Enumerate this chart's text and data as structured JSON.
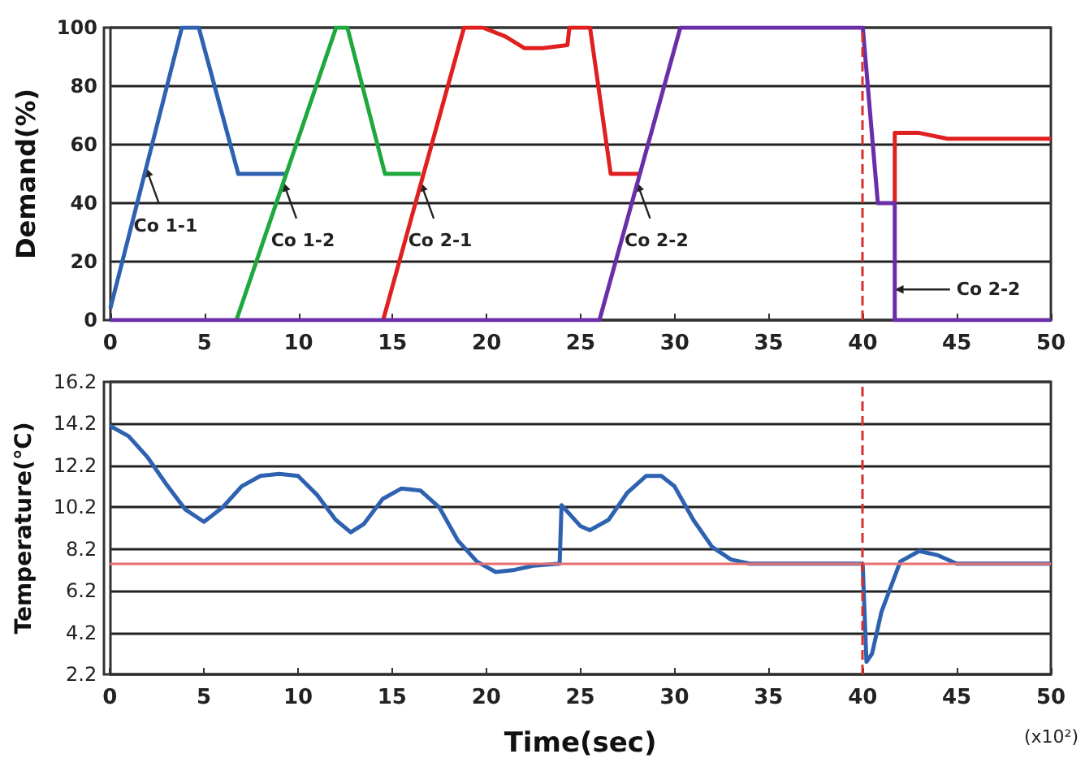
{
  "chart_data": [
    {
      "type": "line",
      "ylabel": "Demand(%)",
      "xlim": [
        0,
        50
      ],
      "xticks": [
        0,
        5,
        10,
        15,
        20,
        25,
        30,
        35,
        40,
        45,
        50
      ],
      "ylim": [
        0,
        100
      ],
      "yticks": [
        0,
        20,
        40,
        60,
        80,
        100
      ],
      "grid": "y",
      "marker": "none",
      "series": [
        {
          "color": "#2e62b0",
          "x": [
            0,
            3.8,
            4.7,
            6.8,
            9.4
          ],
          "values": [
            4,
            100,
            100,
            50,
            50
          ]
        },
        {
          "color": "#1fa83c",
          "x": [
            6.7,
            12,
            12.6,
            14.6,
            16.5
          ],
          "values": [
            0,
            100,
            100,
            50,
            50
          ]
        },
        {
          "color": "#e02020",
          "x": [
            14.5,
            18.8,
            19.8,
            21,
            22,
            23,
            24.3,
            24.4,
            25.5,
            26.6,
            28.2,
            30,
            41.7,
            41.7,
            43,
            44.5,
            50
          ],
          "values": [
            0,
            100,
            100,
            97,
            93,
            93,
            94,
            100,
            100,
            50,
            50,
            null,
            40,
            64,
            64,
            62,
            62
          ]
        },
        {
          "color": "#6a2fa8",
          "x": [
            0,
            26,
            30.3,
            40,
            40.8,
            41.7,
            41.7,
            50
          ],
          "values": [
            0,
            0,
            100,
            100,
            40,
            40,
            0,
            0
          ]
        }
      ],
      "ref_lines": [
        {
          "axis": "x",
          "value": 40,
          "color": "#d83030",
          "line_style": "dashed"
        }
      ],
      "annotations": [
        {
          "text": "Co 1-1",
          "x": 1.9,
          "y": 52
        },
        {
          "text": "Co 1-2",
          "x": 9.2,
          "y": 47
        },
        {
          "text": "Co 2-1",
          "x": 16.5,
          "y": 47
        },
        {
          "text": "Co 2-2",
          "x": 28,
          "y": 47
        },
        {
          "text": "Co 2-2",
          "x": 41.7,
          "y": 10.5
        }
      ]
    },
    {
      "type": "line",
      "xlabel": "Time(sec)",
      "ylabel": "Temperature(℃)",
      "xlim": [
        0,
        50
      ],
      "xticks": [
        0,
        5,
        10,
        15,
        20,
        25,
        30,
        35,
        40,
        45,
        50
      ],
      "ylim": [
        2.2,
        16.2
      ],
      "yticks": [
        2.2,
        4.2,
        6.2,
        8.2,
        10.2,
        12.2,
        14.2,
        16.2
      ],
      "grid": "y",
      "marker": "none",
      "series": [
        {
          "color": "#2e62b0",
          "x": [
            0,
            1,
            2,
            3,
            4,
            5,
            6,
            7,
            8,
            9,
            10,
            11,
            12,
            12.8,
            13.5,
            14.5,
            15.5,
            16.5,
            17.5,
            18.5,
            19.5,
            20.5,
            21.5,
            22.5,
            23.9,
            24,
            25,
            25.5,
            26.5,
            27.5,
            28.5,
            29.3,
            30,
            31,
            32,
            33,
            34,
            35,
            40,
            40.2,
            40.5,
            41,
            42,
            43,
            44,
            45,
            50
          ],
          "values": [
            14.1,
            13.6,
            12.6,
            11.3,
            10.1,
            9.5,
            10.2,
            11.2,
            11.7,
            11.8,
            11.7,
            10.8,
            9.6,
            9.0,
            9.4,
            10.6,
            11.1,
            11.0,
            10.2,
            8.6,
            7.6,
            7.1,
            7.2,
            7.4,
            7.5,
            10.3,
            9.3,
            9.1,
            9.6,
            10.9,
            11.7,
            11.7,
            11.2,
            9.6,
            8.3,
            7.7,
            7.5,
            7.5,
            7.5,
            2.8,
            3.2,
            5.2,
            7.6,
            8.1,
            7.9,
            7.5,
            7.5
          ]
        }
      ],
      "ref_lines": [
        {
          "axis": "y",
          "value": 7.5,
          "color": "#e87070",
          "line_style": "solid"
        },
        {
          "axis": "x",
          "value": 40,
          "color": "#d83030",
          "line_style": "dashed"
        }
      ],
      "annotations": [
        "(x10²)"
      ]
    }
  ]
}
